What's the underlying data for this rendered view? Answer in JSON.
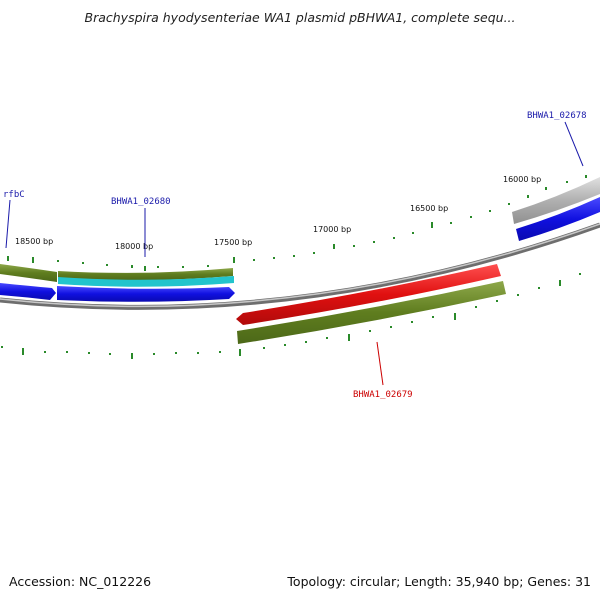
{
  "title": "Brachyspira hyodysenteriae WA1 plasmid pBHWA1, complete sequ...",
  "footer": {
    "accession": "Accession: NC_012226",
    "summary": "Topology: circular; Length: 35,940 bp; Genes: 31"
  },
  "colors": {
    "backbone": "#8a8a8a",
    "gene_olive": "#6b8a2a",
    "gene_blue": "#1a1adb",
    "gene_cyan": "#22c4cc",
    "gene_red": "#e01818",
    "gene_grey": "#b8b8b8",
    "ticks": "#2a8a2a",
    "label_blue": "#1a1aaa",
    "label_red": "#cc0000"
  },
  "ticks": [
    "18500 bp",
    "18000 bp",
    "17500 bp",
    "17000 bp",
    "16500 bp",
    "16000 bp"
  ],
  "gene_labels": {
    "rfbC": "rfbC",
    "g02680": "BHWA1_02680",
    "g02678": "BHWA1_02678",
    "g02679": "BHWA1_02679"
  }
}
